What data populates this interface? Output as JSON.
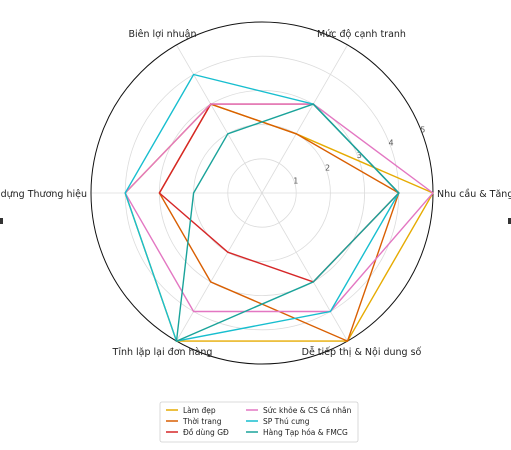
{
  "chart_data": {
    "type": "radar",
    "axes": [
      "Nhu cầu & Tăng trưởng",
      "Mức độ cạnh tranh",
      "Biên lợi nhuận",
      "Xây dựng Thương hiệu",
      "Tỉnh lặp lại đơn hàng",
      "Dễ tiếp thị & Nội dung số"
    ],
    "rmax": 5,
    "ticks": [
      1,
      2,
      3,
      4,
      5
    ],
    "grid": true,
    "legend_position": "bottom",
    "series": [
      {
        "name": "Làm đẹp",
        "color": "#e6ab02",
        "values": [
          5,
          2,
          3,
          4,
          5,
          5
        ]
      },
      {
        "name": "Thời trang",
        "color": "#d95f02",
        "values": [
          4,
          2,
          3,
          3,
          3,
          5
        ]
      },
      {
        "name": "Đồ dùng GĐ",
        "color": "#d62728",
        "values": [
          4,
          3,
          3,
          3,
          2,
          3
        ]
      },
      {
        "name": "Sức khỏe & CS Cá nhân",
        "color": "#e377c2",
        "values": [
          5,
          3,
          3,
          4,
          4,
          4
        ]
      },
      {
        "name": "SP Thú cưng",
        "color": "#17becf",
        "values": [
          4,
          3,
          4,
          4,
          5,
          4
        ]
      },
      {
        "name": "Hàng Tạp hóa & FMCG",
        "color": "#1aa39a",
        "values": [
          4,
          3,
          2,
          2,
          5,
          3
        ]
      }
    ]
  }
}
